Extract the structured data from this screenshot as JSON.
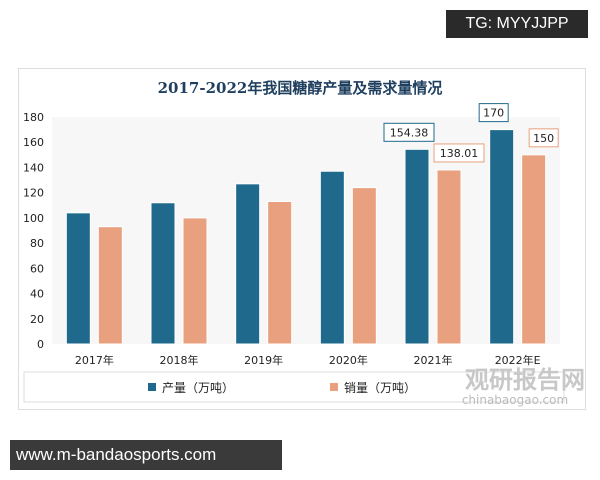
{
  "tg_label": "TG: MYYJJPP",
  "url_label": "www.m-bandaosports.com",
  "watermark": {
    "cn": "观研报告网",
    "en": "chinabaogao.com"
  },
  "chart_data": {
    "type": "bar",
    "title": "2017-2022年我国糖醇产量及需求量情况",
    "categories": [
      "2017年",
      "2018年",
      "2019年",
      "2020年",
      "2021年",
      "2022年E"
    ],
    "series": [
      {
        "name": "产量（万吨）",
        "color": "#1f6a8c",
        "values": [
          104,
          112,
          127,
          137,
          154.38,
          170
        ],
        "labels": [
          null,
          null,
          null,
          null,
          "154.38",
          "170"
        ]
      },
      {
        "name": "销量（万吨）",
        "color": "#e8a07f",
        "values": [
          93,
          100,
          113,
          124,
          138.01,
          150
        ],
        "labels": [
          null,
          null,
          null,
          null,
          "138.01",
          "150"
        ]
      }
    ],
    "ylim": [
      0,
      180
    ],
    "yticks": [
      0,
      20,
      40,
      60,
      80,
      100,
      120,
      140,
      160,
      180
    ],
    "legend": "bottom",
    "xlabel": "",
    "ylabel": ""
  }
}
